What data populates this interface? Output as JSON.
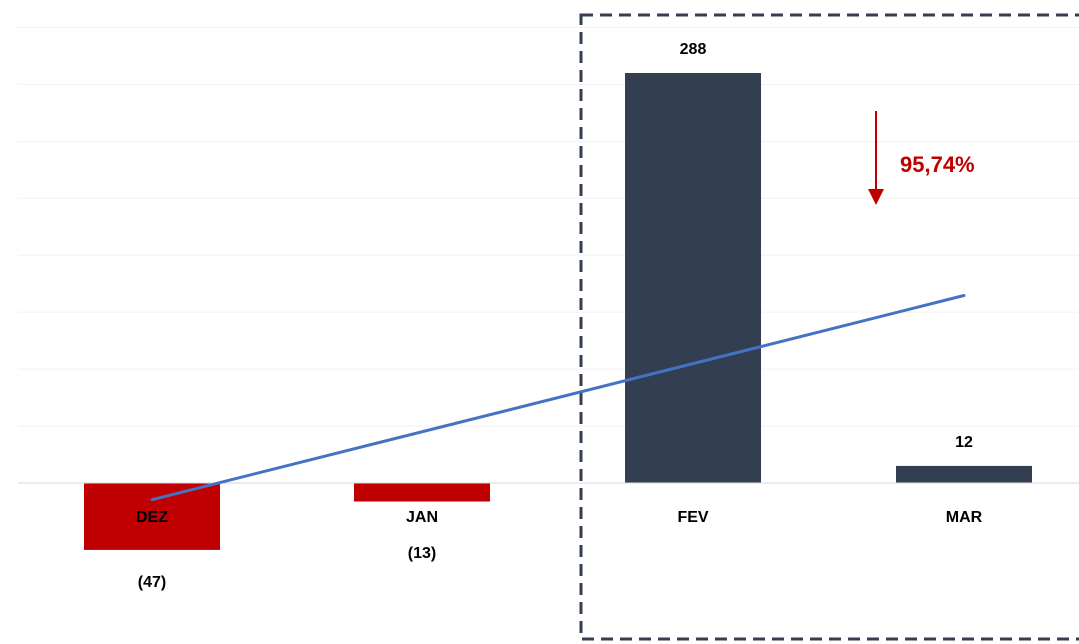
{
  "chart_data": {
    "type": "bar",
    "categories": [
      "DEZ",
      "JAN",
      "FEV",
      "MAR"
    ],
    "values": [
      -47,
      -13,
      288,
      12
    ],
    "value_labels": [
      "(47)",
      "(13)",
      "288",
      "12"
    ],
    "trend_line": true,
    "highlight": {
      "categories": [
        "FEV",
        "MAR"
      ],
      "style": "dashed-box"
    },
    "annotation": {
      "text": "95,74%",
      "direction": "down",
      "between": [
        "FEV",
        "MAR"
      ]
    },
    "colors": {
      "negative": "#C00000",
      "positive": "#333F50",
      "trend": "#4472C4",
      "highlight_border": "#333F50",
      "annotation": "#C00000",
      "gridline": "#F2F2F2",
      "baseline": "#D9D9D9"
    },
    "ylim": [
      -80,
      320
    ],
    "grid": true
  }
}
